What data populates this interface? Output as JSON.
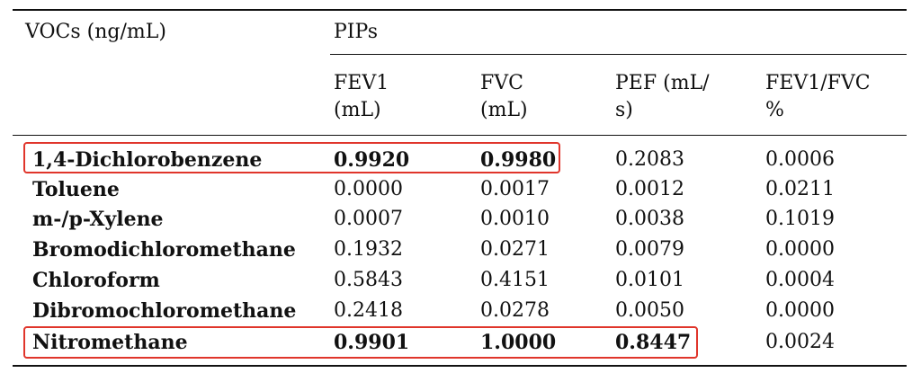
{
  "table": {
    "header": {
      "row_header": "VOCs (ng/mL)",
      "group_label": "PIPs",
      "columns": [
        {
          "line1": "FEV1",
          "line2": "(mL)"
        },
        {
          "line1": "FVC",
          "line2": "(mL)"
        },
        {
          "line1": "PEF (mL/",
          "line2": "s)"
        },
        {
          "line1": "FEV1/FVC",
          "line2": "%"
        }
      ]
    },
    "rows": [
      {
        "label": "1,4-Dichlorobenzene",
        "values": [
          "0.9920",
          "0.9980",
          "0.2083",
          "0.0006"
        ],
        "bold": [
          true,
          true,
          false,
          false
        ]
      },
      {
        "label": "Toluene",
        "values": [
          "0.0000",
          "0.0017",
          "0.0012",
          "0.0211"
        ],
        "bold": [
          false,
          false,
          false,
          false
        ]
      },
      {
        "label": "m-/p-Xylene",
        "values": [
          "0.0007",
          "0.0010",
          "0.0038",
          "0.1019"
        ],
        "bold": [
          false,
          false,
          false,
          false
        ]
      },
      {
        "label": "Bromodichloromethane",
        "values": [
          "0.1932",
          "0.0271",
          "0.0079",
          "0.0000"
        ],
        "bold": [
          false,
          false,
          false,
          false
        ]
      },
      {
        "label": "Chloroform",
        "values": [
          "0.5843",
          "0.4151",
          "0.0101",
          "0.0004"
        ],
        "bold": [
          false,
          false,
          false,
          false
        ]
      },
      {
        "label": "Dibromochloromethane",
        "values": [
          "0.2418",
          "0.0278",
          "0.0050",
          "0.0000"
        ],
        "bold": [
          false,
          false,
          false,
          false
        ]
      },
      {
        "label": "Nitromethane",
        "values": [
          "0.9901",
          "1.0000",
          "0.8447",
          "0.0024"
        ],
        "bold": [
          true,
          true,
          true,
          false
        ]
      }
    ],
    "highlight_color": "#e0352b"
  }
}
